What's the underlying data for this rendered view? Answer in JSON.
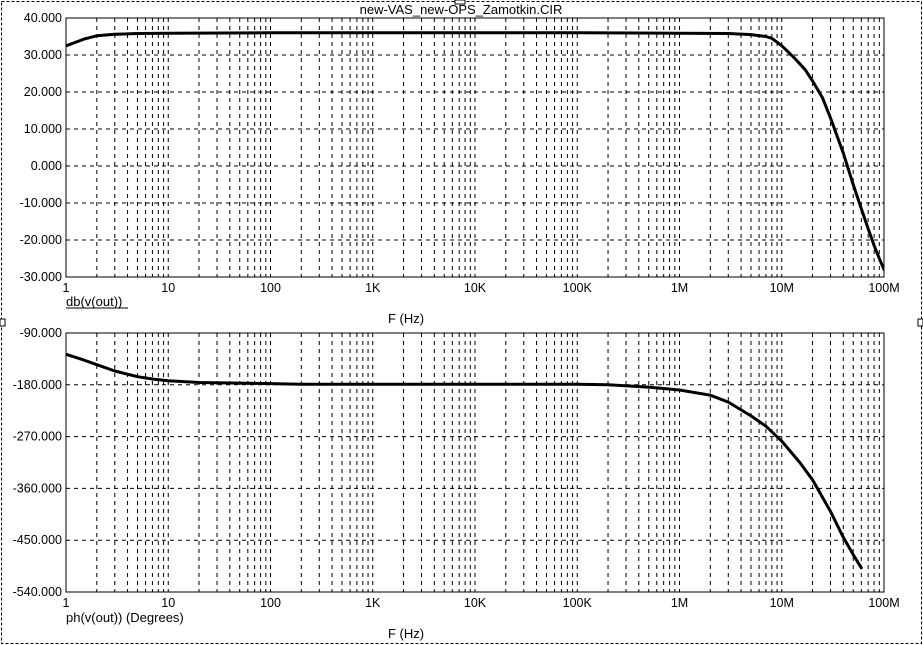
{
  "window": {
    "title": "new-VAS_new-OPS_Zamotkin.CIR"
  },
  "chart_data": [
    {
      "type": "line",
      "title": "",
      "xlabel": "F (Hz)",
      "ylabel": "",
      "expression": "db(v(out))",
      "xscale": "log",
      "xlim": [
        1,
        100000000
      ],
      "ylim": [
        -30,
        40
      ],
      "x_ticks": [
        {
          "value": 1,
          "label": "1"
        },
        {
          "value": 10,
          "label": "10"
        },
        {
          "value": 100,
          "label": "100"
        },
        {
          "value": 1000,
          "label": "1K"
        },
        {
          "value": 10000,
          "label": "10K"
        },
        {
          "value": 100000,
          "label": "100K"
        },
        {
          "value": 1000000,
          "label": "1M"
        },
        {
          "value": 10000000,
          "label": "10M"
        },
        {
          "value": 100000000,
          "label": "100M"
        }
      ],
      "y_ticks": [
        {
          "value": 40,
          "label": "40.000"
        },
        {
          "value": 30,
          "label": "30.000"
        },
        {
          "value": 20,
          "label": "20.000"
        },
        {
          "value": 10,
          "label": "10.000"
        },
        {
          "value": 0,
          "label": "0.000"
        },
        {
          "value": -10,
          "label": "-10.000"
        },
        {
          "value": -20,
          "label": "-20.000"
        },
        {
          "value": -30,
          "label": "-30.000"
        }
      ],
      "grid": true,
      "series": [
        {
          "color": "#000000",
          "x": [
            1,
            1.5,
            2,
            3,
            5,
            10,
            100,
            1000,
            10000,
            100000,
            1000000,
            3000000,
            5000000,
            7000000,
            8000000,
            10000000,
            13000000,
            17000000,
            20000000,
            25000000,
            30000000,
            40000000,
            50000000,
            60000000,
            70000000,
            80000000,
            90000000,
            100000000
          ],
          "y": [
            32.5,
            34.3,
            35.2,
            35.6,
            35.8,
            35.9,
            36.0,
            36.0,
            36.0,
            36.0,
            35.9,
            35.8,
            35.5,
            35.0,
            34.5,
            32.5,
            29.5,
            26.0,
            23.0,
            18.5,
            13.0,
            3.5,
            -5.0,
            -11.5,
            -17.0,
            -21.5,
            -25.0,
            -28.0
          ]
        }
      ]
    },
    {
      "type": "line",
      "title": "",
      "xlabel": "F (Hz)",
      "ylabel": "",
      "expression": "ph(v(out)) (Degrees)",
      "xscale": "log",
      "xlim": [
        1,
        100000000
      ],
      "ylim": [
        -540,
        -90
      ],
      "x_ticks": [
        {
          "value": 1,
          "label": "1"
        },
        {
          "value": 10,
          "label": "10"
        },
        {
          "value": 100,
          "label": "100"
        },
        {
          "value": 1000,
          "label": "1K"
        },
        {
          "value": 10000,
          "label": "10K"
        },
        {
          "value": 100000,
          "label": "100K"
        },
        {
          "value": 1000000,
          "label": "1M"
        },
        {
          "value": 10000000,
          "label": "10M"
        },
        {
          "value": 100000000,
          "label": "100M"
        }
      ],
      "y_ticks": [
        {
          "value": -90,
          "label": "-90.000"
        },
        {
          "value": -180,
          "label": "-180.000"
        },
        {
          "value": -270,
          "label": "-270.000"
        },
        {
          "value": -360,
          "label": "-360.000"
        },
        {
          "value": -450,
          "label": "-450.000"
        },
        {
          "value": -540,
          "label": "-540.000"
        }
      ],
      "grid": true,
      "series": [
        {
          "color": "#000000",
          "x": [
            1,
            1.5,
            2,
            3,
            5,
            7,
            10,
            20,
            50,
            100,
            200,
            1000,
            10000,
            100000,
            200000,
            500000,
            1000000,
            2000000,
            3000000,
            5000000,
            7000000,
            10000000,
            15000000,
            20000000,
            30000000,
            40000000,
            50000000,
            60000000
          ],
          "y": [
            -127,
            -137,
            -145,
            -156,
            -166,
            -170,
            -173,
            -176,
            -177,
            -178,
            -179,
            -179,
            -179,
            -179,
            -180,
            -184,
            -189,
            -198,
            -210,
            -234,
            -252,
            -278,
            -315,
            -345,
            -400,
            -445,
            -475,
            -498
          ]
        }
      ]
    }
  ]
}
